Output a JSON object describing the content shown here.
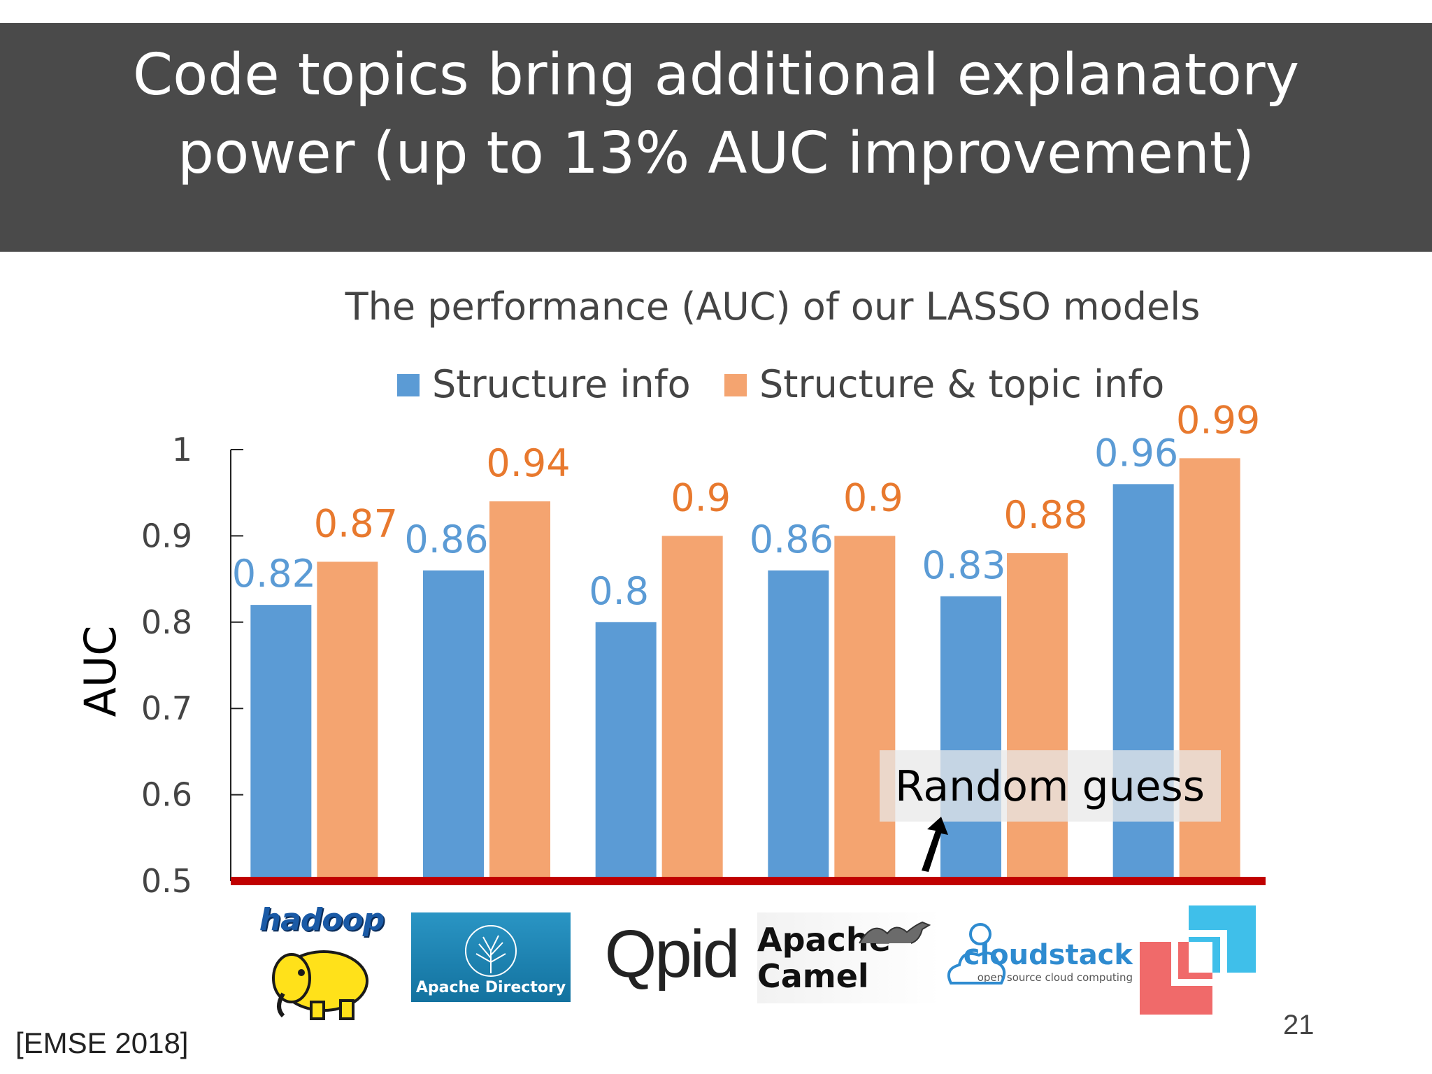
{
  "slide": {
    "title": "Code topics bring additional explanatory power (up to 13% AUC improvement)",
    "citation": "[EMSE 2018]",
    "page_number": "21"
  },
  "logos": [
    {
      "name": "hadoop",
      "text": "hadoop"
    },
    {
      "name": "apache-directory",
      "text": "Apache Directory"
    },
    {
      "name": "qpid",
      "text": "Qpid"
    },
    {
      "name": "apache-camel",
      "text": "Apache Camel"
    },
    {
      "name": "cloudstack",
      "text": "cloudstack",
      "tagline": "open source cloud computing"
    },
    {
      "name": "squares-logo",
      "text": ""
    }
  ],
  "colors": {
    "structure": "#5b9bd5",
    "topic": "#f4a470",
    "structure_label": "#5b9bd5",
    "topic_label": "#e8792e",
    "baseline": "#c00000",
    "title_band": "#4a4a4a"
  },
  "chart_data": {
    "type": "bar",
    "title": "The performance (AUC) of our LASSO models",
    "ylabel": "AUC",
    "xlabel": "",
    "ylim": [
      0.5,
      1
    ],
    "yticks": [
      "0.5",
      "0.6",
      "0.7",
      "0.8",
      "0.9",
      "1"
    ],
    "categories": [
      "hadoop",
      "Apache Directory",
      "Qpid",
      "Apache Camel",
      "cloudstack",
      "squares-logo"
    ],
    "series": [
      {
        "name": "Structure info",
        "values": [
          0.82,
          0.86,
          0.8,
          0.86,
          0.83,
          0.96
        ],
        "labels": [
          "0.82",
          "0.86",
          "0.8",
          "0.86",
          "0.83",
          "0.96"
        ]
      },
      {
        "name": "Structure & topic info",
        "values": [
          0.87,
          0.94,
          0.9,
          0.9,
          0.88,
          0.99
        ],
        "labels": [
          "0.87",
          "0.94",
          "0.9",
          "0.9",
          "0.88",
          "0.99"
        ]
      }
    ],
    "legend": "top",
    "grid": false,
    "annotation": {
      "text": "Random guess",
      "value": 0.5
    }
  }
}
